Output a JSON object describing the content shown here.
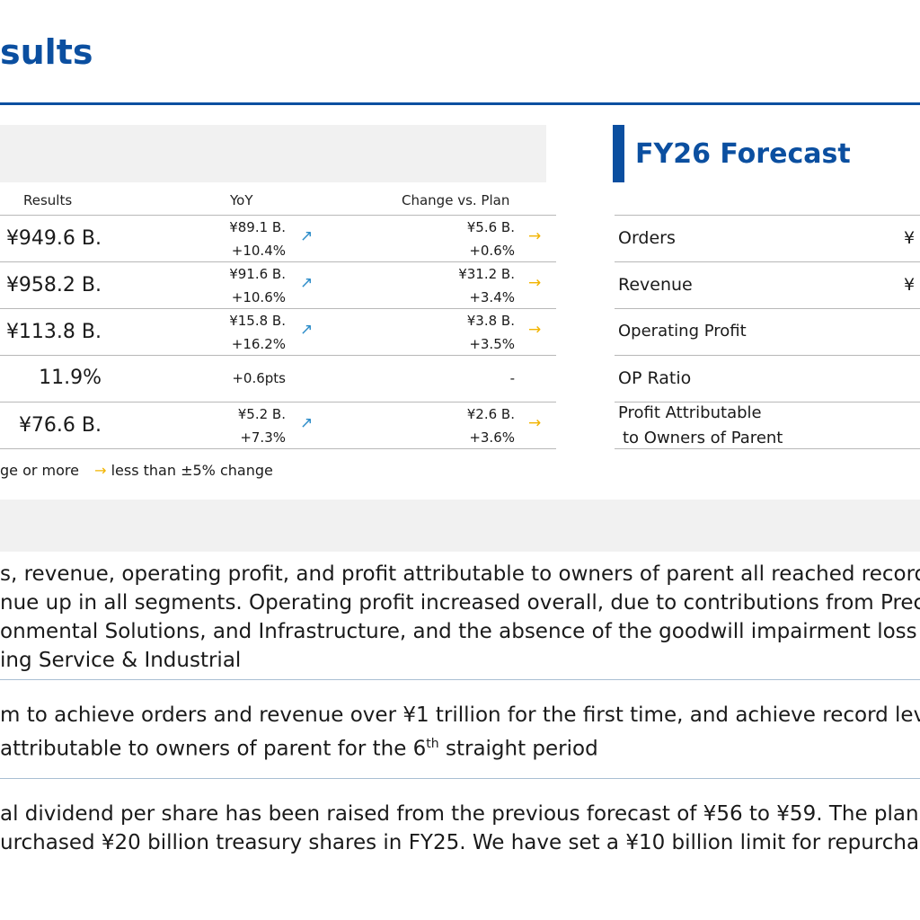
{
  "header": {
    "title": "sults"
  },
  "table": {
    "col_results": "Results",
    "col_yoy": "YoY",
    "col_plan": "Change vs. Plan",
    "rows": [
      {
        "result": "¥949.6 B.",
        "yoy_amount": "¥89.1 B.",
        "yoy_pct": "+10.4%",
        "yoy_arrow": "↗",
        "plan_amount": "¥5.6 B.",
        "plan_pct": "+0.6%",
        "plan_arrow": "→"
      },
      {
        "result": "¥958.2 B.",
        "yoy_amount": "¥91.6 B.",
        "yoy_pct": "+10.6%",
        "yoy_arrow": "↗",
        "plan_amount": "¥31.2 B.",
        "plan_pct": "+3.4%",
        "plan_arrow": "→"
      },
      {
        "result": "¥113.8 B.",
        "yoy_amount": "¥15.8 B.",
        "yoy_pct": "+16.2%",
        "yoy_arrow": "↗",
        "plan_amount": "¥3.8 B.",
        "plan_pct": "+3.5%",
        "plan_arrow": "→"
      },
      {
        "result": "11.9%",
        "yoy_single": "+0.6pts",
        "plan_single": "-"
      },
      {
        "result": "¥76.6 B.",
        "yoy_amount": "¥5.2 B.",
        "yoy_pct": "+7.3%",
        "yoy_arrow": "↗",
        "plan_amount": "¥2.6 B.",
        "plan_pct": "+3.6%",
        "plan_arrow": "→"
      }
    ]
  },
  "legend": {
    "text1": "ge or more",
    "icon": "→",
    "text2": "less than ±5% change"
  },
  "forecast": {
    "title": "FY26 Forecast",
    "rows": [
      {
        "label": "Orders",
        "value": "¥"
      },
      {
        "label": "Revenue",
        "value": "¥"
      },
      {
        "label": "Operating Profit"
      },
      {
        "label": "OP Ratio"
      },
      {
        "label_line1": "Profit Attributable",
        "label_line2": "to Owners of Parent"
      }
    ]
  },
  "summary": {
    "p1": [
      "s, revenue, operating profit, and profit attributable to owners of parent all reached record",
      "nue up in all segments. Operating profit increased overall, due to contributions from Prec",
      "onmental Solutions, and Infrastructure, and the absence of the goodwill impairment loss",
      "ing Service & Industrial"
    ],
    "p2": {
      "line1": "m to achieve orders and revenue over ¥1 trillion for the first time, and achieve record lev",
      "line2_pre": "attributable to owners of parent for the 6",
      "line2_sup": "th",
      "line2_post": " straight period"
    },
    "p3": [
      "al dividend per share has been raised from the previous forecast of ¥56 to ¥59. The plan",
      "urchased ¥20 billion treasury shares in FY25. We have set a ¥10 billion limit for repurchas"
    ]
  }
}
